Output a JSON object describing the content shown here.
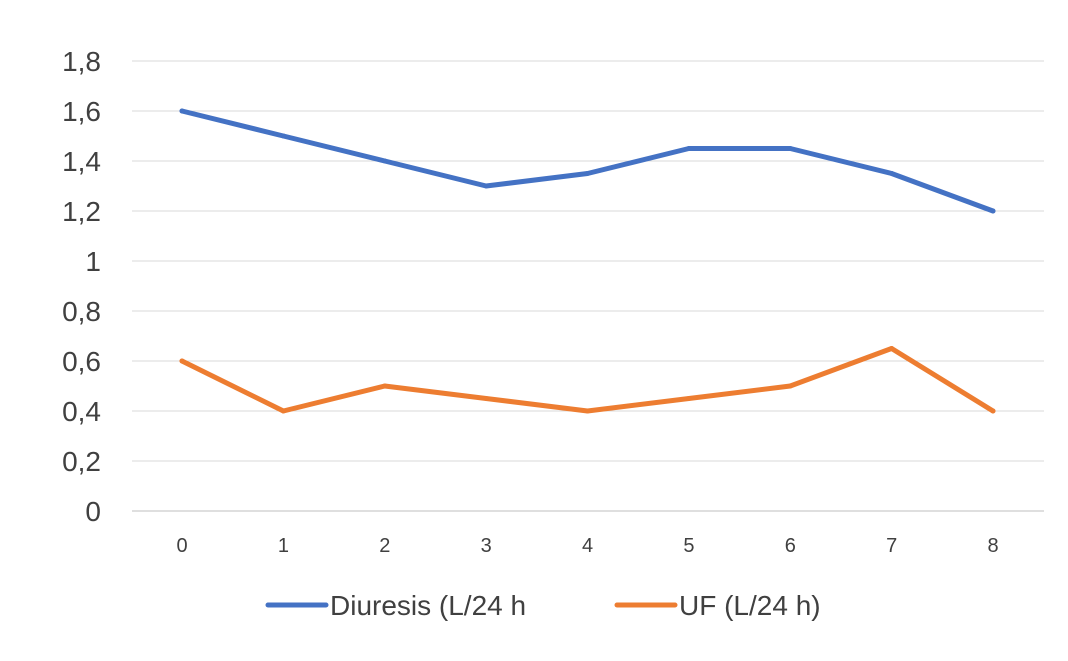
{
  "chart_data": {
    "type": "line",
    "title": "",
    "xlabel": "",
    "ylabel": "",
    "categories": [
      "0",
      "1",
      "2",
      "3",
      "4",
      "5",
      "6",
      "7",
      "8"
    ],
    "ylim": [
      0,
      1.8
    ],
    "yticks": [
      "0",
      "0,2",
      "0,4",
      "0,6",
      "0,8",
      "1",
      "1,2",
      "1,4",
      "1,6",
      "1,8"
    ],
    "grid": "horizontal",
    "legend_position": "bottom",
    "series": [
      {
        "name": "Diuresis (L/24 h",
        "color": "#4472C4",
        "values": [
          1.6,
          1.5,
          1.4,
          1.3,
          1.35,
          1.45,
          1.45,
          1.35,
          1.2
        ]
      },
      {
        "name": "UF (L/24 h)",
        "color": "#ED7D31",
        "values": [
          0.6,
          0.4,
          0.5,
          0.45,
          0.4,
          0.45,
          0.5,
          0.65,
          0.4
        ]
      }
    ]
  }
}
